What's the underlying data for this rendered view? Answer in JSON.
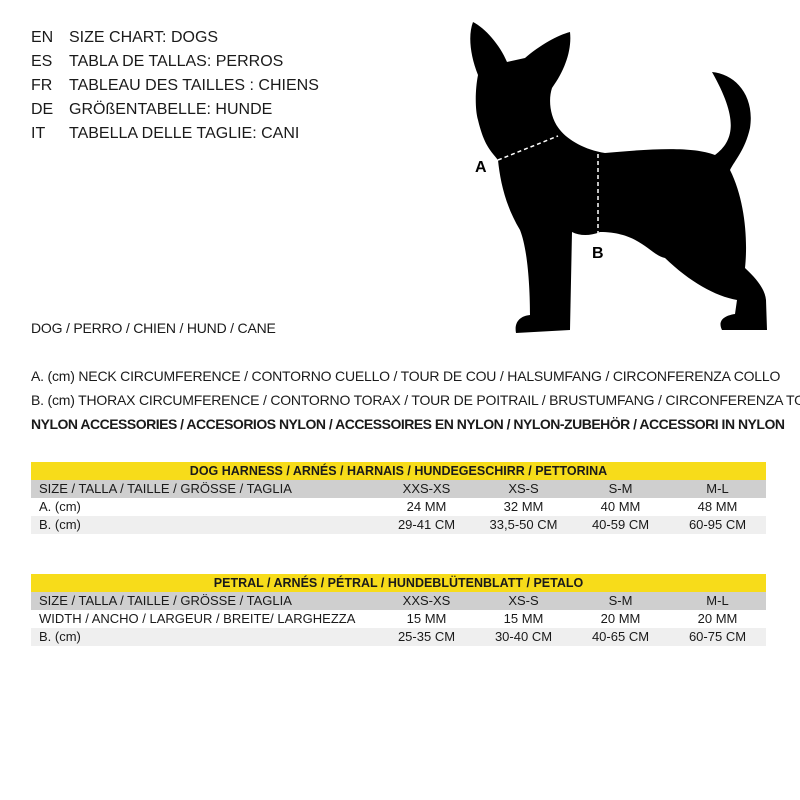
{
  "titles": [
    {
      "code": "EN",
      "text": "SIZE CHART: DOGS"
    },
    {
      "code": "ES",
      "text": "TABLA DE TALLAS: PERROS"
    },
    {
      "code": "FR",
      "text": "TABLEAU DES TAILLES : CHIENS"
    },
    {
      "code": "DE",
      "text": "GRÖßENTABELLE: HUNDE"
    },
    {
      "code": "IT",
      "text": "TABELLA DELLE TAGLIE: CANI"
    }
  ],
  "diagram": {
    "label_a": "A",
    "label_b": "B"
  },
  "animal": "DOG / PERRO / CHIEN / HUND / CANE",
  "legend": {
    "a": "A. (cm) NECK CIRCUMFERENCE / CONTORNO CUELLO / TOUR DE COU / HALSUMFANG / CIRCONFERENZA COLLO",
    "b": "B. (cm) THORAX CIRCUMFERENCE / CONTORNO TORAX / TOUR DE POITRAIL / BRUSTUMFANG / CIRCONFERENZA TORACE",
    "material": "NYLON ACCESSORIES / ACCESORIOS NYLON / ACCESSOIRES EN NYLON / NYLON-ZUBEHÖR / ACCESSORI IN NYLON"
  },
  "colors": {
    "header": "#f7dc1a",
    "size_row": "#cfcfcf",
    "alt_row": "#efefef"
  },
  "tables": [
    {
      "title": "DOG HARNESS / ARNÉS / HARNAIS / HUNDEGESCHIRR / PETTORINA",
      "rows": [
        {
          "label": "SIZE / TALLA / TAILLE / GRÖSSE / TAGLIA",
          "values": [
            "XXS-XS",
            "XS-S",
            "S-M",
            "M-L"
          ]
        },
        {
          "label": "A. (cm)",
          "values": [
            "24 MM",
            "32 MM",
            "40 MM",
            "48 MM"
          ]
        },
        {
          "label": "B. (cm)",
          "values": [
            "29-41 CM",
            "33,5-50 CM",
            "40-59 CM",
            "60-95 CM"
          ]
        }
      ]
    },
    {
      "title": "PETRAL / ARNÉS  / PÉTRAL / HUNDEBLÜTENBLATT / PETALO",
      "rows": [
        {
          "label": "SIZE / TALLA / TAILLE / GRÖSSE / TAGLIA",
          "values": [
            "XXS-XS",
            "XS-S",
            "S-M",
            "M-L"
          ]
        },
        {
          "label": "WIDTH / ANCHO / LARGEUR / BREITE/ LARGHEZZA",
          "values": [
            "15 MM",
            "15 MM",
            "20 MM",
            "20 MM"
          ]
        },
        {
          "label": "B. (cm)",
          "values": [
            "25-35 CM",
            "30-40 CM",
            "40-65 CM",
            "60-75 CM"
          ]
        }
      ]
    }
  ]
}
